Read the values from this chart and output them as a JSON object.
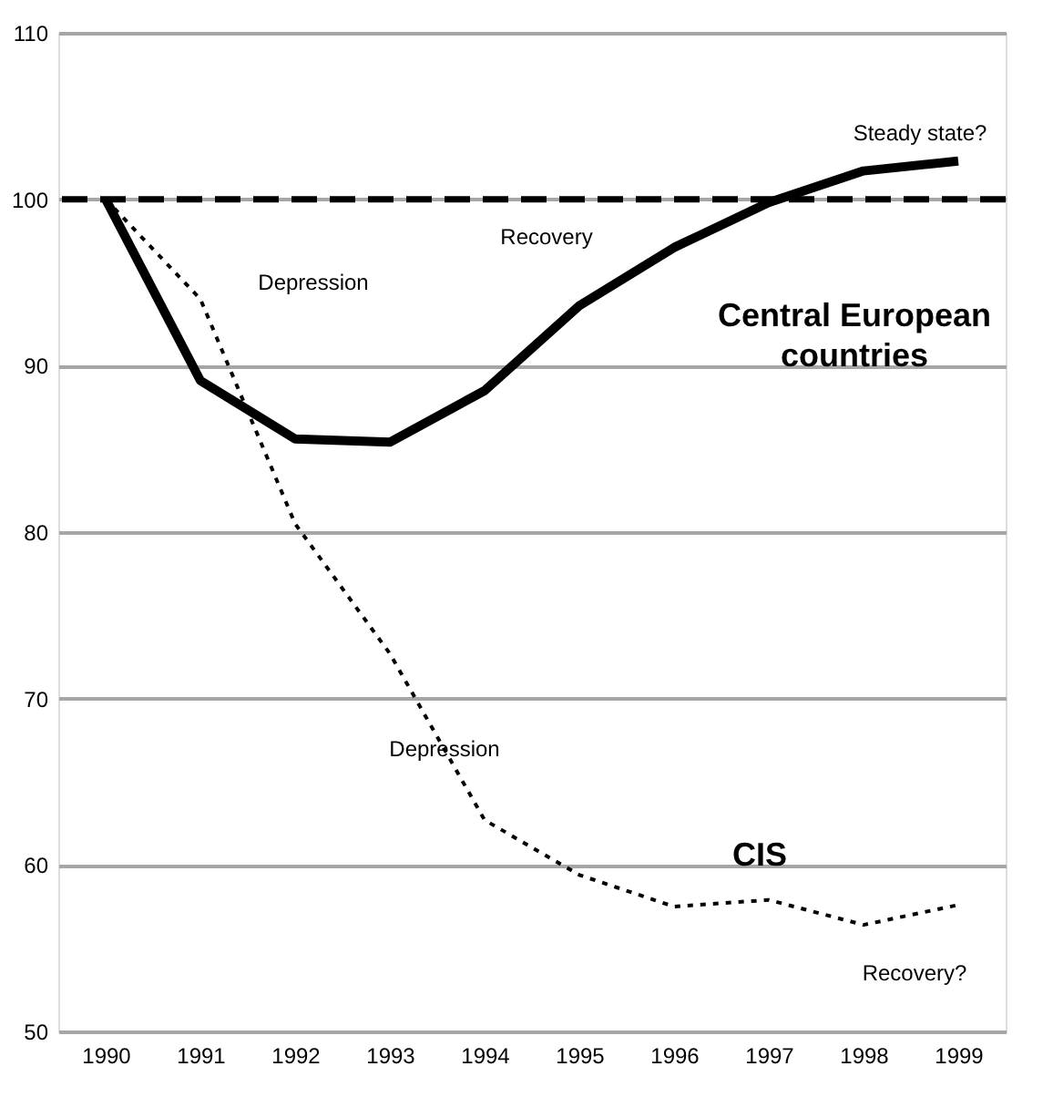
{
  "chart_data": {
    "type": "line",
    "categories": [
      "1990",
      "1991",
      "1992",
      "1993",
      "1994",
      "1995",
      "1996",
      "1997",
      "1998",
      "1999"
    ],
    "series": [
      {
        "name": "Central European countries",
        "color": "#000000",
        "line_style": "solid",
        "values": [
          100,
          89.1,
          85.6,
          85.4,
          88.5,
          93.6,
          97.1,
          99.8,
          101.7,
          102.3
        ]
      },
      {
        "name": "CIS",
        "color": "#000000",
        "line_style": "dotted",
        "values": [
          100,
          94,
          80.5,
          72.7,
          62.7,
          59.4,
          57.5,
          57.9,
          56.4,
          57.6
        ]
      }
    ],
    "ylim": [
      50,
      110
    ],
    "yticks": [
      50,
      60,
      70,
      80,
      90,
      100,
      110
    ],
    "grid": "y",
    "legend": false,
    "marker": "none",
    "ref_lines": [
      {
        "axis": "y",
        "value": 100,
        "color": "#000000",
        "line_style": "dashed"
      }
    ],
    "annotations": [
      "Steady state?",
      "Recovery",
      "Depression",
      "Depression",
      "Recovery?"
    ]
  }
}
